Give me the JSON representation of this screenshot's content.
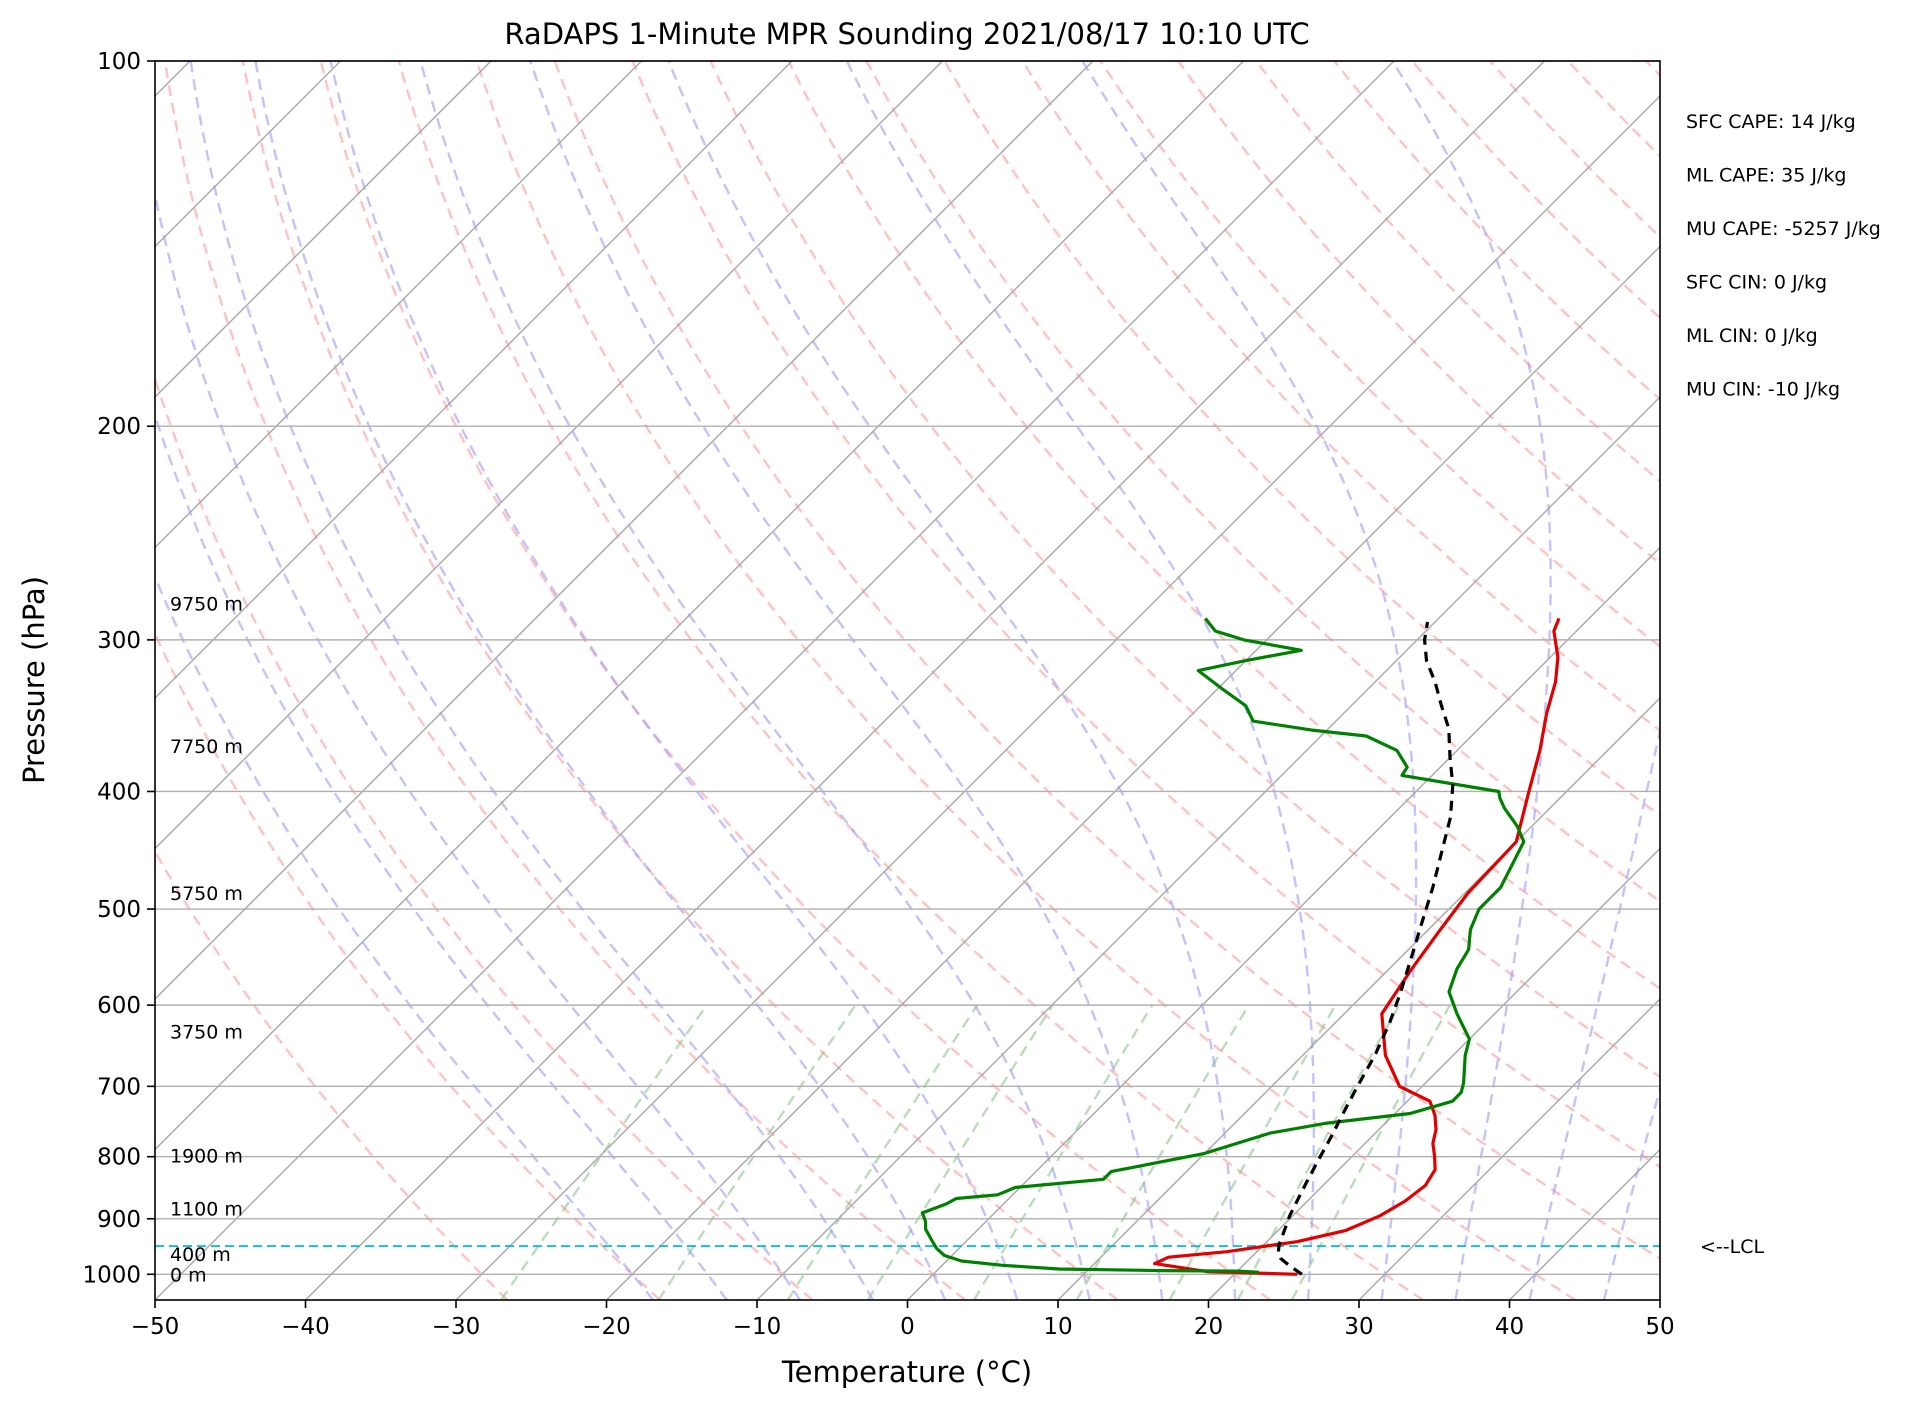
{
  "chart_data": {
    "type": "line",
    "title": "RaDAPS 1-Minute MPR Sounding 2021/08/17 10:10 UTC",
    "xlabel": "Temperature (°C)",
    "ylabel": "Pressure (hPa)",
    "xlim": [
      -50,
      50
    ],
    "ylim": [
      1050,
      100
    ],
    "yscale": "log",
    "grid": true,
    "x_ticks": [
      -50,
      -40,
      -30,
      -20,
      -10,
      0,
      10,
      20,
      30,
      40,
      50
    ],
    "x_tick_labels": [
      "−50",
      "−40",
      "−30",
      "−20",
      "−10",
      "0",
      "10",
      "20",
      "30",
      "40",
      "50"
    ],
    "y_ticks": [
      100,
      200,
      300,
      400,
      500,
      600,
      700,
      800,
      900,
      1000
    ],
    "y_tick_labels": [
      "100",
      "200",
      "300",
      "400",
      "500",
      "600",
      "700",
      "800",
      "900",
      "1000"
    ],
    "background_lines": {
      "isotherms_every_c": 10,
      "dry_adiabats": "red dashed",
      "moist_adiabats": "blue dashed",
      "mixing_ratio_lines": "green dashed"
    },
    "series": [
      {
        "color": "#e00000",
        "points": [
          [
            24.2,
            1000
          ],
          [
            18,
            995
          ],
          [
            14,
            980
          ],
          [
            14.5,
            968
          ],
          [
            18,
            958
          ],
          [
            22,
            940
          ],
          [
            24.5,
            920
          ],
          [
            25.8,
            895
          ],
          [
            26.5,
            870
          ],
          [
            26.8,
            845
          ],
          [
            26.4,
            820
          ],
          [
            25.5,
            800
          ],
          [
            24.5,
            780
          ],
          [
            23.8,
            760
          ],
          [
            22.8,
            740
          ],
          [
            21.5,
            720
          ],
          [
            18.5,
            700
          ],
          [
            15.5,
            660
          ],
          [
            12.5,
            610
          ],
          [
            11.5,
            560
          ],
          [
            10.8,
            520
          ],
          [
            10.2,
            485
          ],
          [
            10,
            440
          ],
          [
            7.5,
            400
          ],
          [
            5.5,
            370
          ],
          [
            3.5,
            345
          ],
          [
            2,
            325
          ],
          [
            0.5,
            310
          ],
          [
            -1.5,
            295
          ],
          [
            -2,
            288
          ]
        ]
      },
      {
        "color": "#008000",
        "points": [
          [
            21.5,
            996
          ],
          [
            20,
            994
          ],
          [
            15,
            993
          ],
          [
            8,
            990
          ],
          [
            4,
            983
          ],
          [
            1,
            975
          ],
          [
            -0.5,
            965
          ],
          [
            -1.5,
            952
          ],
          [
            -2.5,
            935
          ],
          [
            -3.5,
            918
          ],
          [
            -4,
            905
          ],
          [
            -4.8,
            890
          ],
          [
            -3.8,
            875
          ],
          [
            -3.5,
            866
          ],
          [
            -1,
            860
          ],
          [
            -0.3,
            848
          ],
          [
            5,
            835
          ],
          [
            5,
            823
          ],
          [
            10,
            795
          ],
          [
            13,
            765
          ],
          [
            16,
            751
          ],
          [
            21,
            737
          ],
          [
            23,
            720
          ],
          [
            23,
            708
          ],
          [
            22.5,
            695
          ],
          [
            20.8,
            660
          ],
          [
            20,
            640
          ],
          [
            17.5,
            610
          ],
          [
            15.5,
            585
          ],
          [
            14.5,
            560
          ],
          [
            14,
            540
          ],
          [
            12.8,
            520
          ],
          [
            12,
            500
          ],
          [
            12,
            480
          ],
          [
            10.5,
            440
          ],
          [
            9,
            427
          ],
          [
            7,
            413
          ],
          [
            6,
            405
          ],
          [
            5.5,
            400
          ],
          [
            -2,
            388
          ],
          [
            -2.2,
            382
          ],
          [
            -4,
            370
          ],
          [
            -7,
            360
          ],
          [
            -11,
            356
          ],
          [
            -15.5,
            350
          ],
          [
            -17,
            340
          ],
          [
            -19.5,
            330
          ],
          [
            -22.5,
            318
          ],
          [
            -20,
            312
          ],
          [
            -17,
            306
          ],
          [
            -21.5,
            300
          ],
          [
            -24,
            295
          ],
          [
            -25.5,
            288
          ]
        ]
      },
      {
        "color": "#000000",
        "points": [
          [
            24.5,
            1000
          ],
          [
            23.2,
            985
          ],
          [
            22,
            970
          ],
          [
            21.5,
            960
          ],
          [
            21,
            945
          ],
          [
            20.3,
            915
          ],
          [
            19.8,
            895
          ],
          [
            19.3,
            870
          ],
          [
            18.7,
            840
          ],
          [
            18,
            805
          ],
          [
            17.3,
            770
          ],
          [
            16.5,
            735
          ],
          [
            15.7,
            700
          ],
          [
            14.8,
            660
          ],
          [
            13.6,
            620
          ],
          [
            12.3,
            585
          ],
          [
            10.8,
            550
          ],
          [
            9.2,
            515
          ],
          [
            7.5,
            480
          ],
          [
            5.8,
            450
          ],
          [
            4,
            420
          ],
          [
            2,
            395
          ],
          [
            0,
            375
          ],
          [
            -2,
            355
          ],
          [
            -4,
            340
          ],
          [
            -6,
            325
          ],
          [
            -8,
            312
          ],
          [
            -9.5,
            300
          ],
          [
            -10.5,
            290
          ]
        ]
      }
    ],
    "height_labels": [
      {
        "text": "9750 m",
        "p": 280
      },
      {
        "text": "7750 m",
        "p": 367
      },
      {
        "text": "5750 m",
        "p": 485
      },
      {
        "text": "3750 m",
        "p": 631
      },
      {
        "text": "1900 m",
        "p": 798
      },
      {
        "text": "1100 m",
        "p": 883
      },
      {
        "text": "400 m",
        "p": 962
      },
      {
        "text": "0 m",
        "p": 1000
      }
    ],
    "lcl": {
      "p": 948,
      "label": "<--LCL",
      "color": "#17becf"
    },
    "annotations": [
      "SFC CAPE: 14 J/kg",
      "ML CAPE: 35 J/kg",
      "MU CAPE: -5257 J/kg",
      "SFC CIN: 0 J/kg",
      "ML CIN: 0 J/kg",
      "MU CIN: -10 J/kg"
    ]
  }
}
